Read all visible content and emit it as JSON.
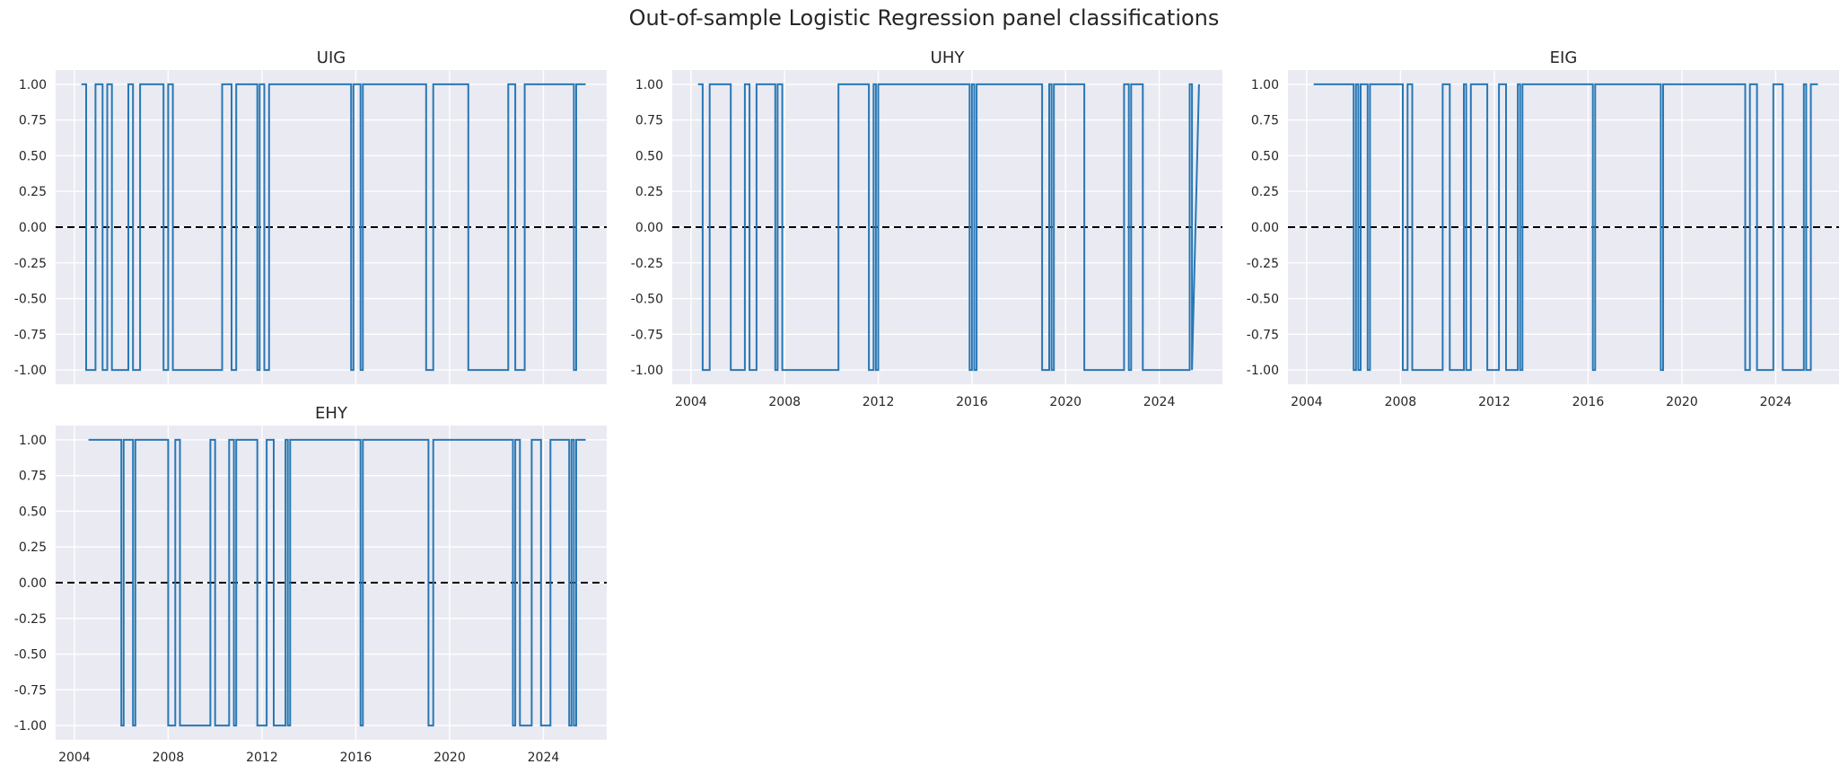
{
  "figure": {
    "title": "Out-of-sample Logistic Regression panel classifications"
  },
  "style": {
    "plot_background": "#eaeaf2",
    "grid_color": "#ffffff",
    "line_color": "#2878b5",
    "zero_line_color": "#000000"
  },
  "chart_data": [
    {
      "type": "line",
      "title": "UIG",
      "xlabel": "",
      "ylabel": "",
      "x_ticks": [
        "2004",
        "2008",
        "2012",
        "2016",
        "2020",
        "2024"
      ],
      "y_ticks": [
        "1.00",
        "0.75",
        "0.50",
        "0.25",
        "0.00",
        "-0.25",
        "-0.50",
        "-0.75",
        "-1.00"
      ],
      "xlim": [
        2003.2,
        2026.7
      ],
      "ylim": [
        -1.1,
        1.1
      ],
      "grid": true,
      "reference_line": {
        "y": 0,
        "style": "dashed"
      },
      "series": [
        {
          "x": [
            2004.3,
            2004.5,
            2004.5,
            2004.9,
            2004.9,
            2005.2,
            2005.2,
            2005.4,
            2005.4,
            2005.6,
            2005.6,
            2006.3,
            2006.3,
            2006.5,
            2006.5,
            2006.8,
            2006.8,
            2007.8,
            2007.8,
            2008.0,
            2008.0,
            2008.2,
            2008.2,
            2010.3,
            2010.3,
            2010.7,
            2010.7,
            2010.9,
            2010.9,
            2011.8,
            2011.8,
            2011.9,
            2011.9,
            2012.1,
            2012.1,
            2012.3,
            2012.3,
            2015.8,
            2015.8,
            2015.9,
            2015.9,
            2016.2,
            2016.2,
            2016.3,
            2016.3,
            2019.0,
            2019.0,
            2019.3,
            2019.3,
            2020.8,
            2020.8,
            2022.5,
            2022.5,
            2022.8,
            2022.8,
            2023.2,
            2023.2,
            2025.3,
            2025.3,
            2025.4,
            2025.4,
            2025.8
          ],
          "y": [
            1,
            1,
            -1,
            -1,
            1,
            1,
            -1,
            -1,
            1,
            1,
            -1,
            -1,
            1,
            1,
            -1,
            -1,
            1,
            1,
            -1,
            -1,
            1,
            1,
            -1,
            -1,
            1,
            1,
            -1,
            -1,
            1,
            1,
            -1,
            -1,
            1,
            1,
            -1,
            -1,
            1,
            1,
            -1,
            -1,
            1,
            1,
            -1,
            -1,
            1,
            1,
            -1,
            -1,
            1,
            1,
            -1,
            -1,
            1,
            1,
            -1,
            -1,
            1,
            1,
            -1,
            -1,
            1,
            1
          ]
        }
      ]
    },
    {
      "type": "line",
      "title": "UHY",
      "xlabel": "",
      "ylabel": "",
      "x_ticks": [
        "2004",
        "2008",
        "2012",
        "2016",
        "2020",
        "2024"
      ],
      "y_ticks": [
        "1.00",
        "0.75",
        "0.50",
        "0.25",
        "0.00",
        "-0.25",
        "-0.50",
        "-0.75",
        "-1.00"
      ],
      "xlim": [
        2003.2,
        2026.7
      ],
      "ylim": [
        -1.1,
        1.1
      ],
      "grid": true,
      "reference_line": {
        "y": 0,
        "style": "dashed"
      },
      "series": [
        {
          "x": [
            2004.3,
            2004.5,
            2004.5,
            2004.8,
            2004.8,
            2005.7,
            2005.7,
            2006.3,
            2006.3,
            2006.5,
            2006.5,
            2006.8,
            2006.8,
            2007.6,
            2007.6,
            2007.7,
            2007.7,
            2007.9,
            2007.9,
            2010.3,
            2010.3,
            2011.6,
            2011.6,
            2011.8,
            2011.8,
            2011.9,
            2011.9,
            2012.0,
            2012.0,
            2015.9,
            2015.9,
            2016.0,
            2016.0,
            2016.1,
            2016.1,
            2016.2,
            2016.2,
            2019.0,
            2019.0,
            2019.3,
            2019.3,
            2019.4,
            2019.4,
            2019.5,
            2019.5,
            2020.8,
            2020.8,
            2022.5,
            2022.5,
            2022.7,
            2022.7,
            2022.8,
            2022.8,
            2023.3,
            2023.3,
            2025.3,
            2025.3,
            2025.4,
            2025.4,
            2025.7
          ],
          "y": [
            1,
            1,
            -1,
            -1,
            1,
            1,
            -1,
            -1,
            1,
            1,
            -1,
            -1,
            1,
            1,
            -1,
            -1,
            1,
            1,
            -1,
            -1,
            1,
            1,
            -1,
            -1,
            1,
            1,
            -1,
            -1,
            1,
            1,
            -1,
            -1,
            1,
            1,
            -1,
            -1,
            1,
            1,
            -1,
            -1,
            1,
            1,
            -1,
            -1,
            1,
            1,
            -1,
            -1,
            1,
            1,
            -1,
            -1,
            1,
            1,
            -1,
            -1,
            1,
            1,
            -1,
            1
          ]
        }
      ]
    },
    {
      "type": "line",
      "title": "EIG",
      "xlabel": "",
      "ylabel": "",
      "x_ticks": [
        "2004",
        "2008",
        "2012",
        "2016",
        "2020",
        "2024"
      ],
      "y_ticks": [
        "1.00",
        "0.75",
        "0.50",
        "0.25",
        "0.00",
        "-0.25",
        "-0.50",
        "-0.75",
        "-1.00"
      ],
      "xlim": [
        2003.2,
        2026.7
      ],
      "ylim": [
        -1.1,
        1.1
      ],
      "grid": true,
      "reference_line": {
        "y": 0,
        "style": "dashed"
      },
      "series": [
        {
          "x": [
            2004.3,
            2006.0,
            2006.0,
            2006.1,
            2006.1,
            2006.2,
            2006.2,
            2006.3,
            2006.3,
            2006.6,
            2006.6,
            2006.7,
            2006.7,
            2008.1,
            2008.1,
            2008.3,
            2008.3,
            2008.5,
            2008.5,
            2009.8,
            2009.8,
            2010.1,
            2010.1,
            2010.7,
            2010.7,
            2010.8,
            2010.8,
            2011.0,
            2011.0,
            2011.7,
            2011.7,
            2012.2,
            2012.2,
            2012.5,
            2012.5,
            2013.0,
            2013.0,
            2013.1,
            2013.1,
            2013.2,
            2013.2,
            2016.2,
            2016.2,
            2016.3,
            2016.3,
            2019.1,
            2019.1,
            2019.2,
            2019.2,
            2022.7,
            2022.7,
            2022.9,
            2022.9,
            2023.2,
            2023.2,
            2023.9,
            2023.9,
            2024.3,
            2024.3,
            2025.2,
            2025.2,
            2025.3,
            2025.3,
            2025.5,
            2025.5,
            2025.6,
            2025.6,
            2025.8
          ],
          "y": [
            1,
            1,
            -1,
            -1,
            1,
            1,
            -1,
            -1,
            1,
            1,
            -1,
            -1,
            1,
            1,
            -1,
            -1,
            1,
            1,
            -1,
            -1,
            1,
            1,
            -1,
            -1,
            1,
            1,
            -1,
            -1,
            1,
            1,
            -1,
            -1,
            1,
            1,
            -1,
            -1,
            1,
            1,
            -1,
            -1,
            1,
            1,
            -1,
            -1,
            1,
            1,
            -1,
            -1,
            1,
            1,
            -1,
            -1,
            1,
            1,
            -1,
            -1,
            1,
            1,
            -1,
            -1,
            1,
            1,
            -1,
            -1,
            1,
            1,
            1,
            1
          ]
        }
      ]
    },
    {
      "type": "line",
      "title": "EHY",
      "xlabel": "",
      "ylabel": "",
      "x_ticks": [
        "2004",
        "2008",
        "2012",
        "2016",
        "2020",
        "2024"
      ],
      "y_ticks": [
        "1.00",
        "0.75",
        "0.50",
        "0.25",
        "0.00",
        "-0.25",
        "-0.50",
        "-0.75",
        "-1.00"
      ],
      "xlim": [
        2003.2,
        2026.7
      ],
      "ylim": [
        -1.1,
        1.1
      ],
      "grid": true,
      "reference_line": {
        "y": 0,
        "style": "dashed"
      },
      "series": [
        {
          "x": [
            2004.6,
            2006.0,
            2006.0,
            2006.1,
            2006.1,
            2006.5,
            2006.5,
            2006.6,
            2006.6,
            2008.0,
            2008.0,
            2008.3,
            2008.3,
            2008.5,
            2008.5,
            2009.8,
            2009.8,
            2010.0,
            2010.0,
            2010.6,
            2010.6,
            2010.8,
            2010.8,
            2010.9,
            2010.9,
            2011.8,
            2011.8,
            2012.2,
            2012.2,
            2012.5,
            2012.5,
            2013.0,
            2013.0,
            2013.1,
            2013.1,
            2013.2,
            2013.2,
            2016.2,
            2016.2,
            2016.3,
            2016.3,
            2019.1,
            2019.1,
            2019.3,
            2019.3,
            2022.7,
            2022.7,
            2022.8,
            2022.8,
            2023.0,
            2023.0,
            2023.5,
            2023.5,
            2023.9,
            2023.9,
            2024.3,
            2024.3,
            2025.1,
            2025.1,
            2025.2,
            2025.2,
            2025.3,
            2025.3,
            2025.4,
            2025.4,
            2025.5,
            2025.5,
            2025.8
          ],
          "y": [
            1,
            1,
            -1,
            -1,
            1,
            1,
            -1,
            -1,
            1,
            1,
            -1,
            -1,
            1,
            1,
            -1,
            -1,
            1,
            1,
            -1,
            -1,
            1,
            1,
            -1,
            -1,
            1,
            1,
            -1,
            -1,
            1,
            1,
            -1,
            -1,
            1,
            1,
            -1,
            -1,
            1,
            1,
            -1,
            -1,
            1,
            1,
            -1,
            -1,
            1,
            1,
            -1,
            -1,
            1,
            1,
            -1,
            -1,
            1,
            1,
            -1,
            -1,
            1,
            1,
            -1,
            -1,
            1,
            1,
            -1,
            -1,
            1,
            1,
            1,
            1
          ]
        }
      ]
    }
  ]
}
